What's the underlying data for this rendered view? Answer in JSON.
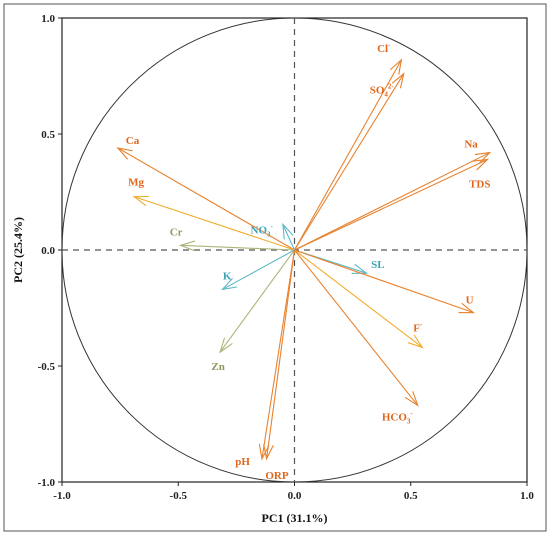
{
  "chart_data": {
    "type": "scatter",
    "subtype": "pca-biplot-loadings",
    "title": "",
    "xlabel": "PC1 (31.1%)",
    "ylabel": "PC2 (25.4%)",
    "xlim": [
      -1.0,
      1.0
    ],
    "ylim": [
      -1.0,
      1.0
    ],
    "x_ticks": [
      "-1.0",
      "-0.5",
      "0.0",
      "0.5",
      "1.0"
    ],
    "y_ticks": [
      "-1.0",
      "-0.5",
      "0.0",
      "0.5",
      "1.0"
    ],
    "grid": false,
    "unit_circle": true,
    "zero_lines": "dashed",
    "colors": {
      "orange": "#e8822e",
      "amber": "#f0ad2e",
      "teal": "#5fb8c4",
      "olive": "#a9b57a",
      "label_orange": "#e0661c",
      "label_teal": "#3fa2b3",
      "label_olive": "#8e9b5c"
    },
    "vectors": [
      {
        "label": "Cl",
        "sup": "-",
        "x": 0.46,
        "y": 0.82,
        "color": "orange",
        "label_color": "label_orange",
        "side": "left"
      },
      {
        "label": "SO",
        "sub": "4",
        "sup": "2-",
        "x": 0.47,
        "y": 0.76,
        "color": "orange",
        "label_color": "label_orange",
        "side": "below"
      },
      {
        "label": "Na",
        "x": 0.84,
        "y": 0.42,
        "color": "orange",
        "label_color": "label_orange",
        "side": "above"
      },
      {
        "label": "TDS",
        "x": 0.83,
        "y": 0.39,
        "color": "orange",
        "label_color": "label_orange",
        "side": "below"
      },
      {
        "label": "Ca",
        "x": -0.76,
        "y": 0.44,
        "color": "orange",
        "label_color": "label_orange",
        "side": "right"
      },
      {
        "label": "Mg",
        "x": -0.69,
        "y": 0.23,
        "color": "amber",
        "label_color": "label_orange",
        "side": "above"
      },
      {
        "label": "NO",
        "sub": "3",
        "sup": "-",
        "x": -0.05,
        "y": 0.11,
        "color": "teal",
        "label_color": "label_teal",
        "side": "left"
      },
      {
        "label": "Cr",
        "x": -0.49,
        "y": 0.02,
        "color": "olive",
        "label_color": "label_olive",
        "side": "above"
      },
      {
        "label": "SL",
        "x": 0.31,
        "y": -0.1,
        "color": "teal",
        "label_color": "label_teal",
        "side": "above"
      },
      {
        "label": "K",
        "x": -0.31,
        "y": -0.17,
        "color": "teal",
        "label_color": "label_teal",
        "side": "above"
      },
      {
        "label": "U",
        "x": 0.77,
        "y": -0.27,
        "color": "orange",
        "label_color": "label_orange",
        "side": "above"
      },
      {
        "label": "F",
        "sup": "-",
        "x": 0.55,
        "y": -0.42,
        "color": "amber",
        "label_color": "label_orange",
        "side": "above"
      },
      {
        "label": "Zn",
        "x": -0.32,
        "y": -0.44,
        "color": "olive",
        "label_color": "label_olive",
        "side": "below"
      },
      {
        "label": "HCO",
        "sub": "3",
        "sup": "-",
        "x": 0.53,
        "y": -0.67,
        "color": "orange",
        "label_color": "label_orange",
        "side": "left"
      },
      {
        "label": "pH",
        "x": -0.14,
        "y": -0.9,
        "color": "orange",
        "label_color": "label_orange",
        "side": "left"
      },
      {
        "label": "ORP",
        "x": -0.12,
        "y": -0.9,
        "color": "orange",
        "label_color": "label_orange",
        "side": "below"
      }
    ]
  }
}
